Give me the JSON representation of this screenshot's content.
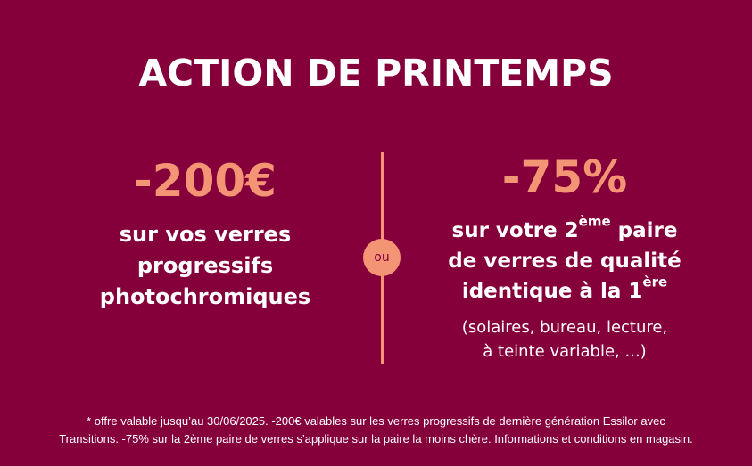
{
  "title": "ACTION DE PRINTEMPS",
  "left": {
    "amount": "-200€",
    "line1": "sur vos verres",
    "line2": "progressifs",
    "line3": "photochromiques"
  },
  "separator": {
    "label": "ou"
  },
  "right": {
    "amount": "-75%",
    "line1_pre": "sur votre 2",
    "line1_sup": "ème",
    "line1_post": " paire",
    "line2": "de verres de qualité",
    "line3_pre": "identique à la 1",
    "line3_sup": "ère",
    "note_line1": "(solaires, bureau, lecture,",
    "note_line2": "à teinte variable, ...)"
  },
  "footnote": {
    "line1": "* offre valable jusqu’au 30/06/2025. -200€ valables sur les verres progressifs de dernière génération Essilor avec",
    "line2": "Transitions. -75% sur la 2ème paire de verres s’applique sur la paire la moins chère. Informations et conditions en magasin."
  },
  "colors": {
    "background": "#85003b",
    "accent": "#f39575",
    "text": "#ffffff"
  }
}
